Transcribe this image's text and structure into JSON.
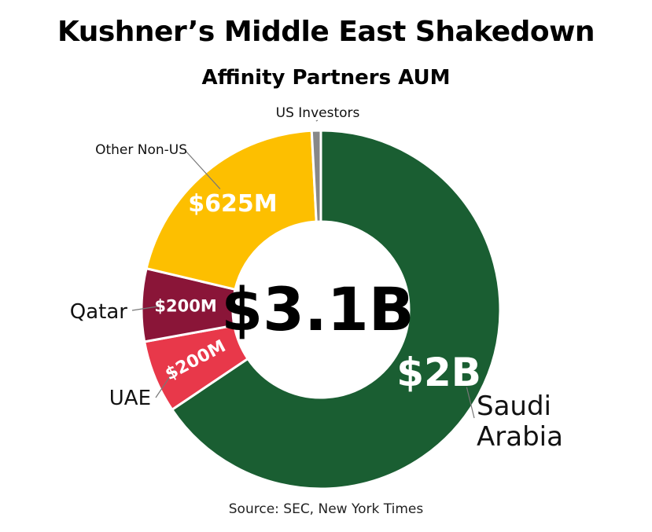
{
  "title": "Kushner’s Middle East Shakedown",
  "subtitle": "Affinity Partners AUM",
  "source": "Source: SEC, New York Times",
  "chart_data": {
    "type": "pie",
    "style": "donut",
    "title": "Kushner’s Middle East Shakedown",
    "subtitle": "Affinity Partners AUM",
    "center_label": "$3.1B",
    "total": 3.1,
    "unit": "$B",
    "slices": [
      {
        "name": "Saudi Arabia",
        "value": 2.0,
        "data_label": "$2B",
        "color": "#1a5e32"
      },
      {
        "name": "UAE",
        "value": 0.2,
        "data_label": "$200M",
        "color": "#e8384a"
      },
      {
        "name": "Qatar",
        "value": 0.2,
        "data_label": "$200M",
        "color": "#8a1538"
      },
      {
        "name": "Other Non-US",
        "value": 0.625,
        "data_label": "$625M",
        "color": "#fdbf00"
      },
      {
        "name": "US Investors",
        "value": 0.025,
        "data_label": "",
        "color": "#888888"
      }
    ],
    "source": "Source: SEC, New York Times"
  }
}
